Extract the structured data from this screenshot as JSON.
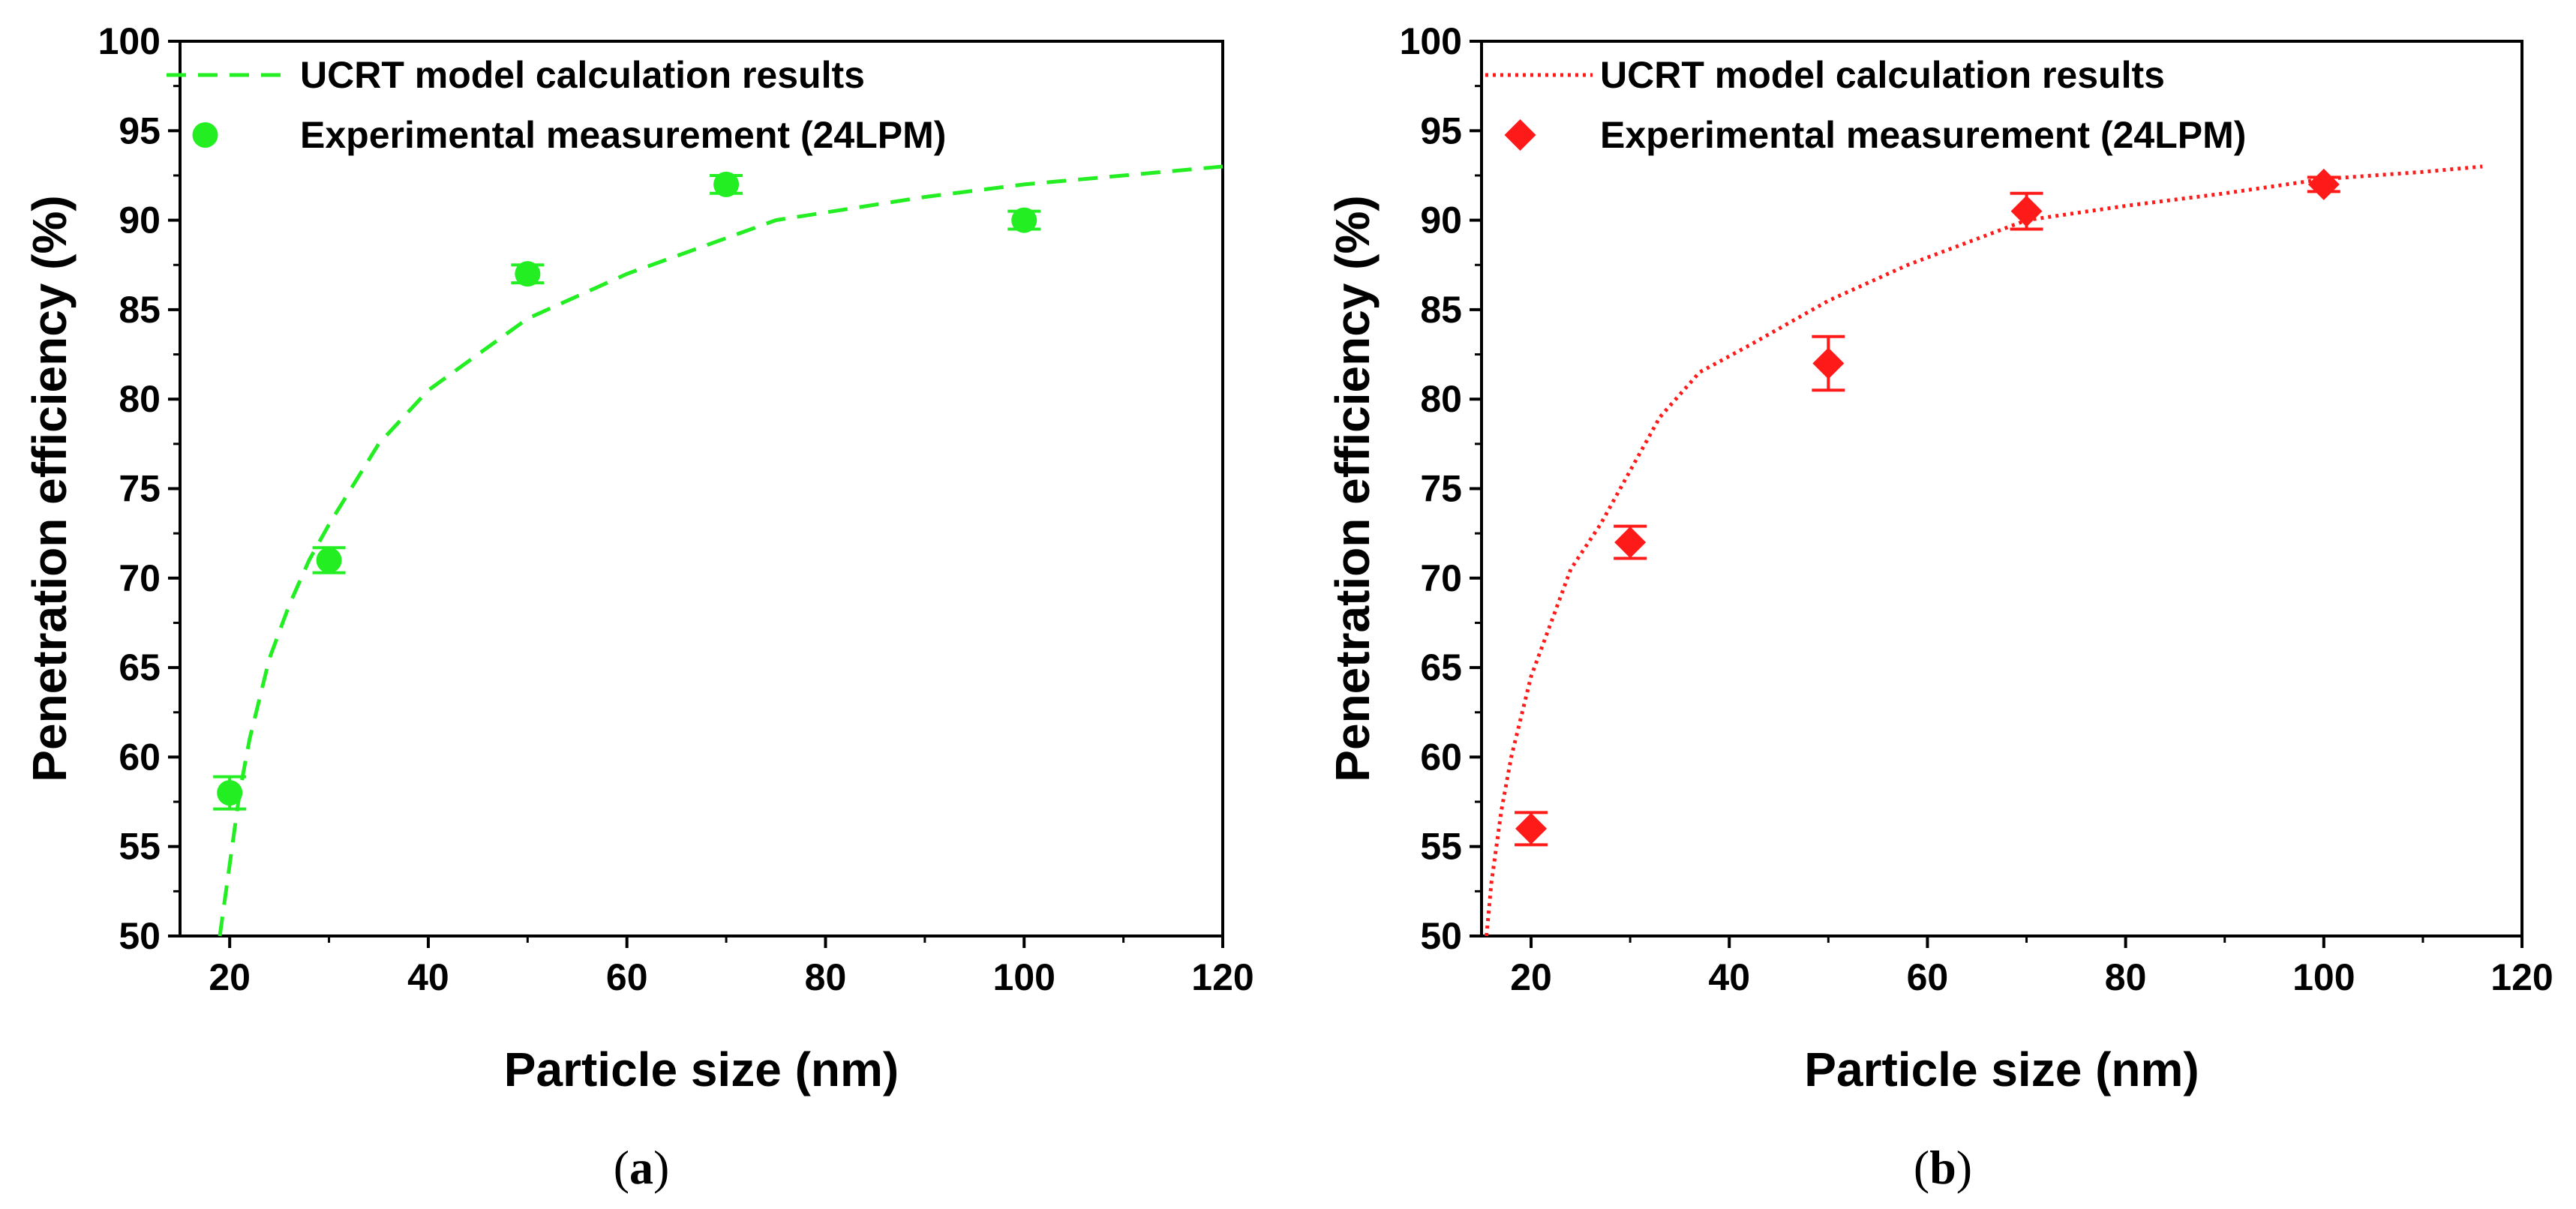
{
  "chart_data": [
    {
      "type": "scatter",
      "panel": "a",
      "caption_letter": "a",
      "xlabel": "Particle size (nm)",
      "ylabel": "Penetration efficiency (%)",
      "xlim": [
        15,
        120
      ],
      "ylim": [
        50,
        100
      ],
      "xticks": [
        20,
        40,
        60,
        80,
        100,
        120
      ],
      "yticks": [
        50,
        55,
        60,
        65,
        70,
        75,
        80,
        85,
        90,
        95,
        100
      ],
      "line_series": {
        "name": "UCRT model calculation results",
        "style": "dashed",
        "color": "#22ee22",
        "x": [
          19,
          20,
          21,
          22,
          24,
          26,
          28,
          30,
          35,
          40,
          50,
          60,
          75,
          90,
          100,
          110,
          120
        ],
        "y": [
          50,
          54,
          58,
          61,
          65.5,
          68.5,
          71,
          73,
          77.5,
          80.5,
          84.5,
          87,
          90,
          91.3,
          92,
          92.5,
          93
        ]
      },
      "point_series": {
        "name": "Experimental measurement (24LPM)",
        "marker": "circle",
        "color": "#22ee22",
        "x": [
          20,
          30,
          50,
          70,
          100
        ],
        "y": [
          58,
          71,
          87,
          92,
          90
        ],
        "err": [
          0.9,
          0.7,
          0.5,
          0.5,
          0.5
        ]
      }
    },
    {
      "type": "scatter",
      "panel": "b",
      "caption_letter": "b",
      "xlabel": "Particle size (nm)",
      "ylabel": "Penetration efficiency (%)",
      "xlim": [
        15,
        120
      ],
      "ylim": [
        50,
        100
      ],
      "xticks": [
        20,
        40,
        60,
        80,
        100,
        120
      ],
      "yticks": [
        50,
        55,
        60,
        65,
        70,
        75,
        80,
        85,
        90,
        95,
        100
      ],
      "line_series": {
        "name": "UCRT model calculation results",
        "style": "dotted",
        "color": "#ff1a1a",
        "x": [
          15.5,
          16,
          17,
          18,
          20,
          22,
          24,
          27,
          30,
          33,
          37,
          42,
          50,
          58,
          70,
          80,
          90,
          100,
          110,
          116
        ],
        "y": [
          50,
          53,
          57,
          60,
          64.5,
          67.5,
          70.5,
          73,
          76,
          79,
          81.5,
          83,
          85.5,
          87.5,
          90,
          90.8,
          91.5,
          92.3,
          92.7,
          93
        ]
      },
      "point_series": {
        "name": "Experimental measurement (24LPM)",
        "marker": "diamond",
        "color": "#ff1a1a",
        "x": [
          20,
          30,
          50,
          70,
          100
        ],
        "y": [
          56,
          72,
          82,
          90.5,
          92
        ],
        "err": [
          0.9,
          0.9,
          1.5,
          1.0,
          0.4
        ]
      }
    }
  ]
}
